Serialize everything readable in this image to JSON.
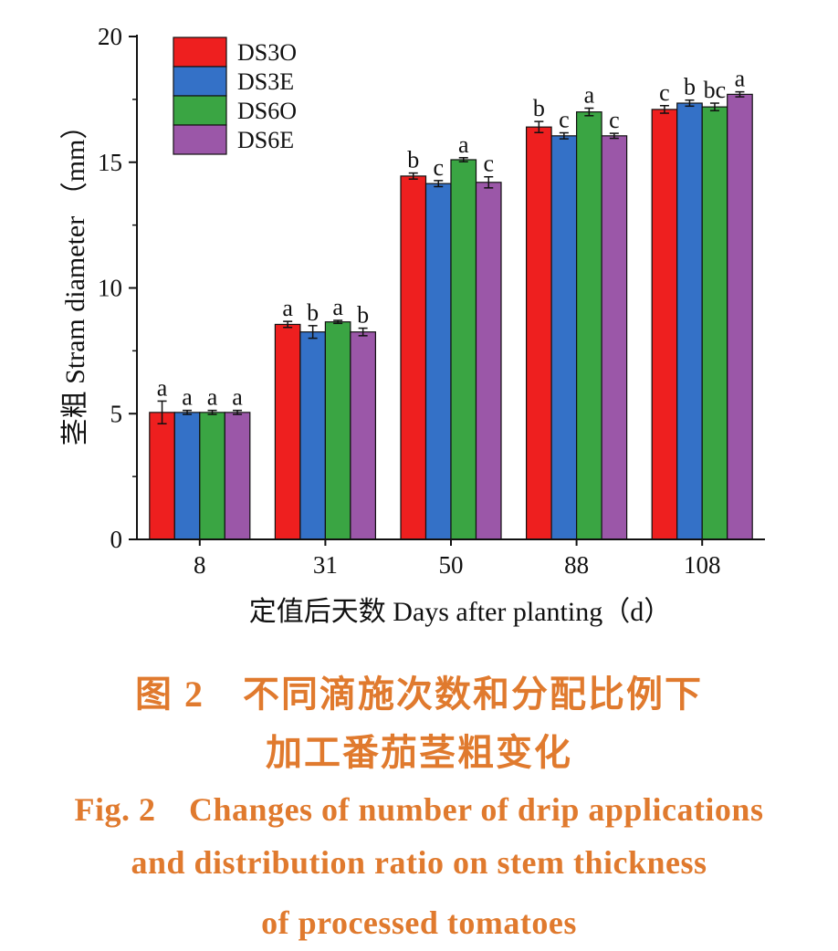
{
  "chart_data": {
    "type": "bar",
    "categories": [
      "8",
      "31",
      "50",
      "88",
      "108"
    ],
    "series": [
      {
        "name": "DS3O",
        "color": "#ee1f1f",
        "values": [
          5.05,
          8.55,
          14.45,
          16.4,
          17.1
        ],
        "errors": [
          0.45,
          0.12,
          0.12,
          0.22,
          0.15
        ],
        "letters": [
          "a",
          "a",
          "b",
          "b",
          "c"
        ]
      },
      {
        "name": "DS3E",
        "color": "#3471c7",
        "values": [
          5.05,
          8.25,
          14.15,
          16.05,
          17.35
        ],
        "errors": [
          0.08,
          0.25,
          0.12,
          0.12,
          0.12
        ],
        "letters": [
          "a",
          "b",
          "c",
          "c",
          "b"
        ]
      },
      {
        "name": "DS6O",
        "color": "#3aa543",
        "values": [
          5.05,
          8.65,
          15.1,
          17.0,
          17.2
        ],
        "errors": [
          0.08,
          0.06,
          0.08,
          0.15,
          0.15
        ],
        "letters": [
          "a",
          "a",
          "a",
          "a",
          "bc"
        ]
      },
      {
        "name": "DS6E",
        "color": "#9b57a8",
        "values": [
          5.05,
          8.25,
          14.2,
          16.05,
          17.7
        ],
        "errors": [
          0.08,
          0.15,
          0.22,
          0.1,
          0.1
        ],
        "letters": [
          "a",
          "b",
          "c",
          "c",
          "a"
        ]
      }
    ],
    "yticks": [
      "0",
      "5",
      "10",
      "15",
      "20"
    ],
    "ylim": [
      0,
      20
    ],
    "xlabel": "定值后天数  Days after planting（d）",
    "ylabel": "茎粗  Stram diameter （mm）",
    "legend_position": "top-left",
    "grid": false
  },
  "caption": {
    "cn_line1": "图 2　不同滴施次数和分配比例下",
    "cn_line2": "加工番茄茎粗变化",
    "en_line1": "Fig. 2　Changes of number of drip applications",
    "en_line2": "and distribution ratio on stem thickness",
    "en_line3": "of processed tomatoes"
  }
}
